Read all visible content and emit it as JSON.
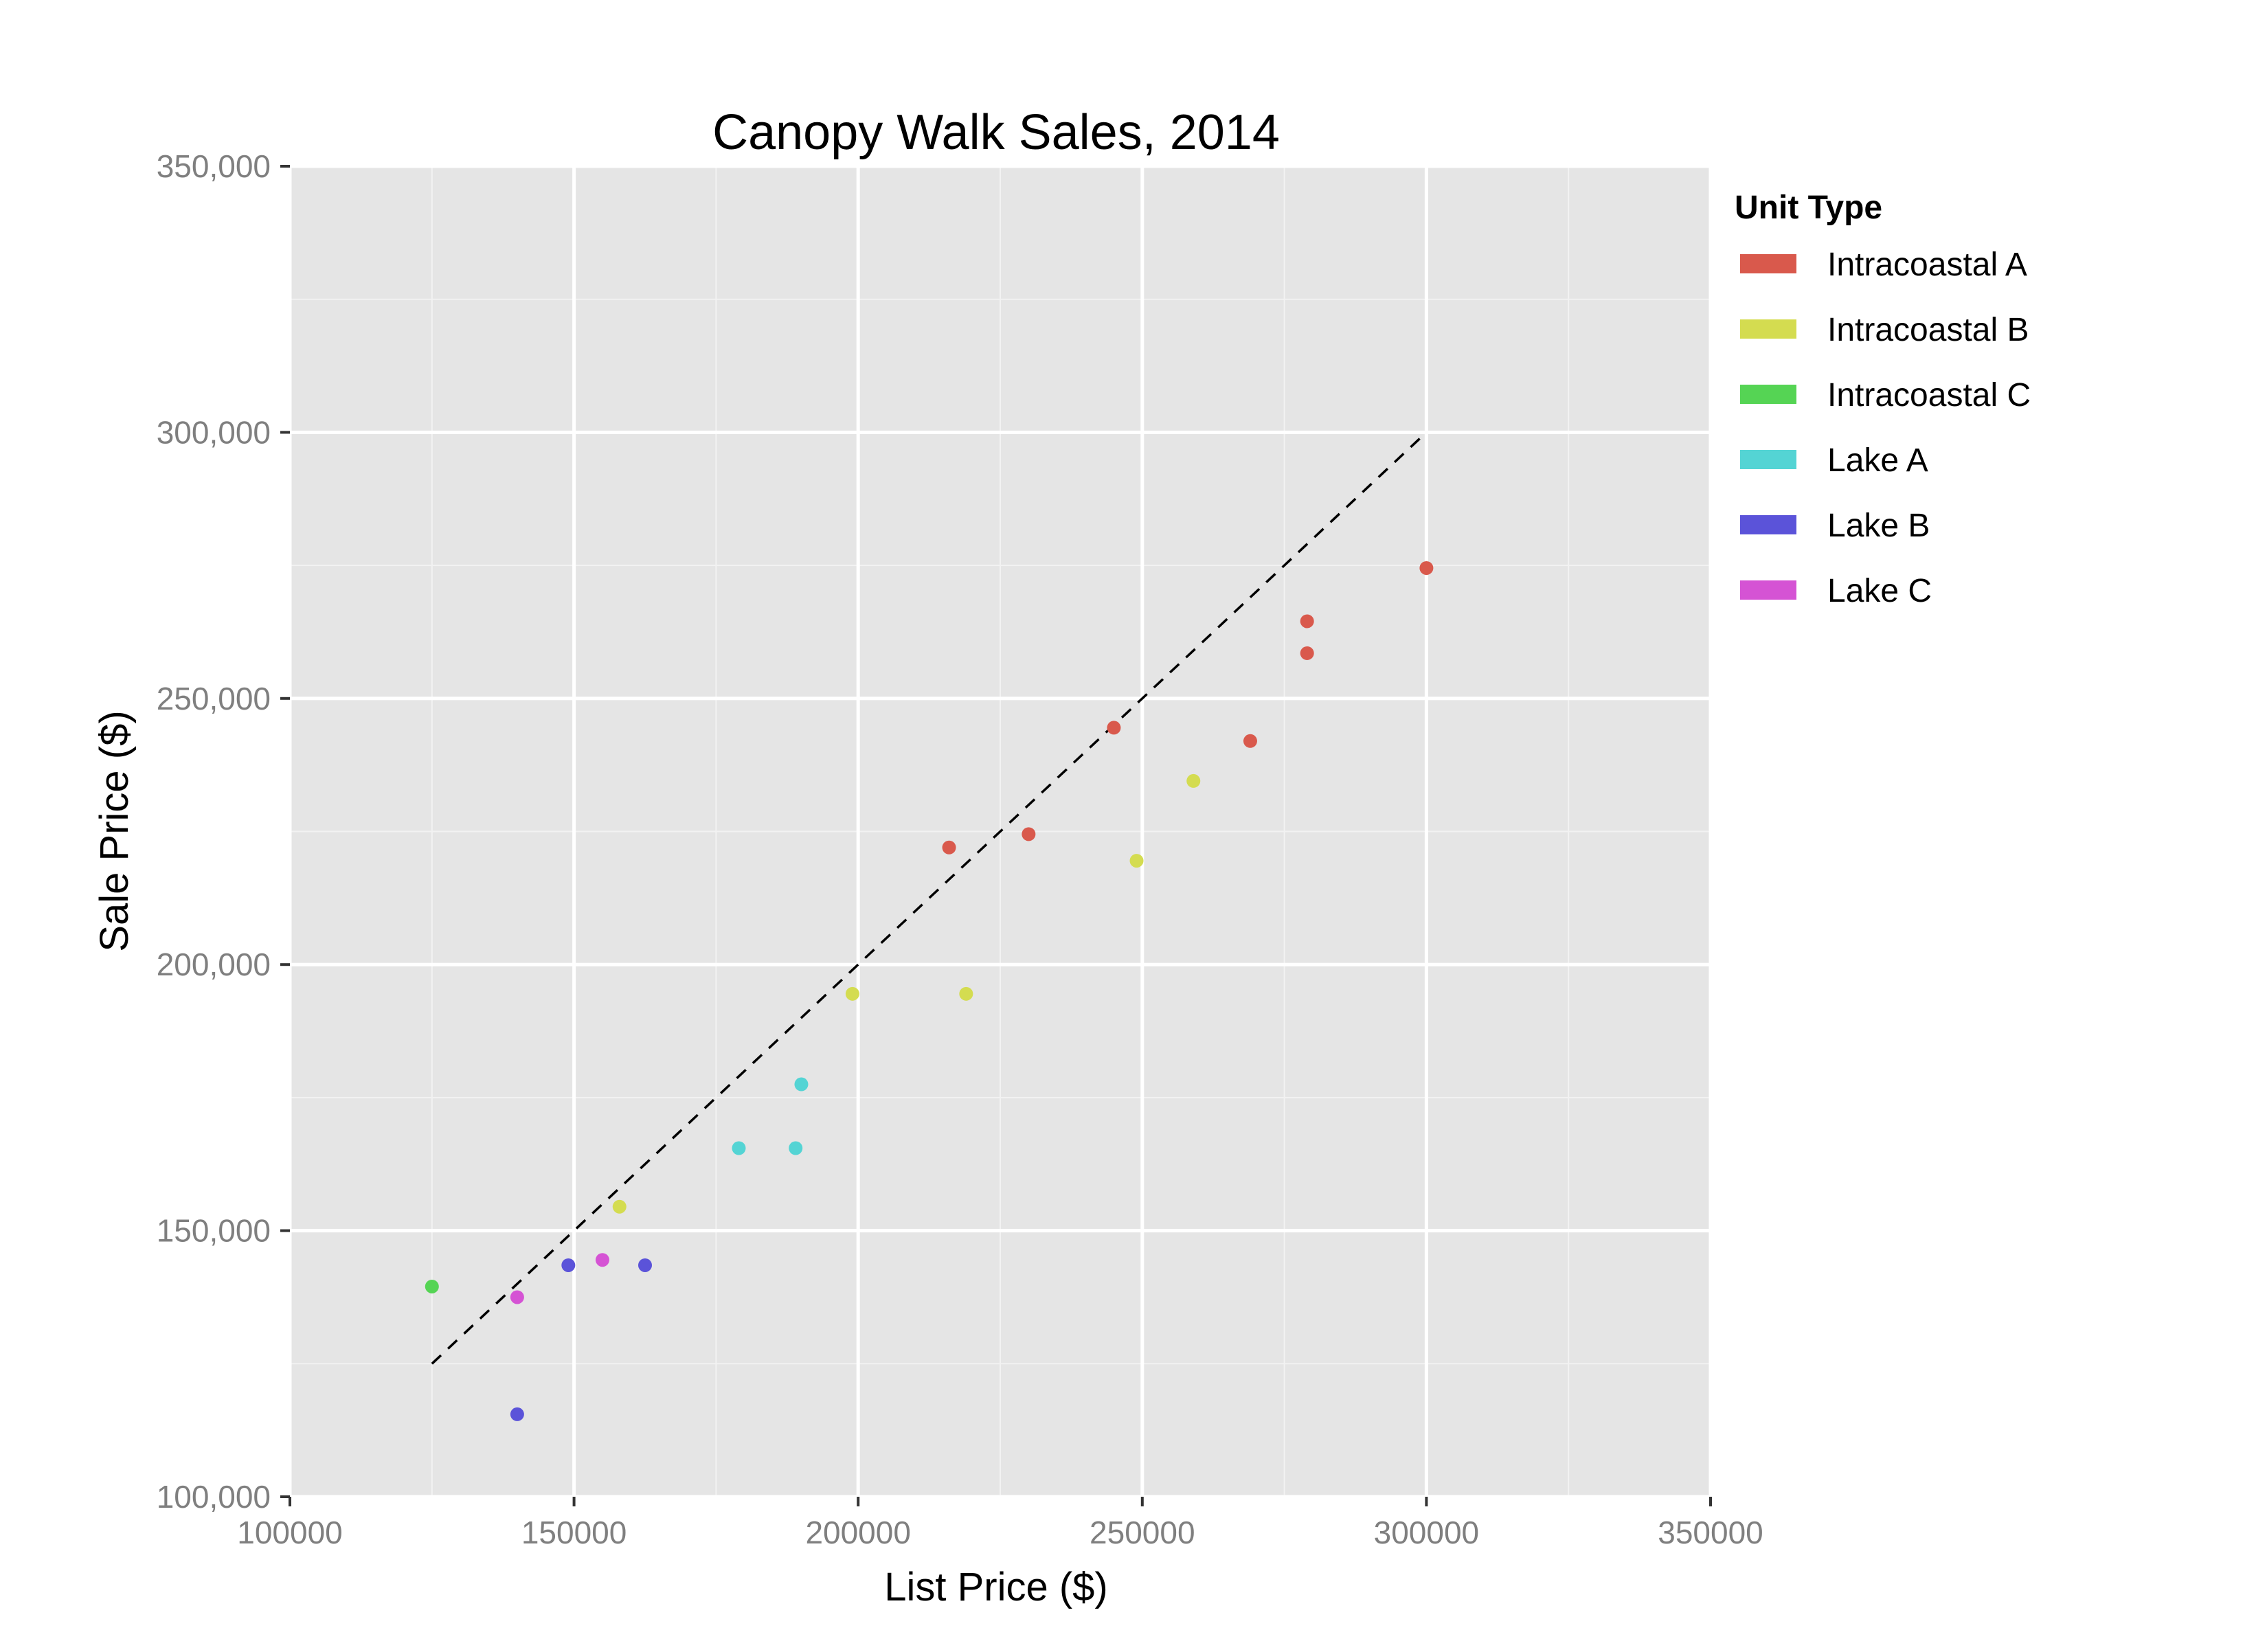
{
  "chart_data": {
    "type": "scatter",
    "title": "Canopy Walk Sales, 2014",
    "xlabel": "List Price ($)",
    "ylabel": "Sale Price ($)",
    "xlim": [
      100000,
      350000
    ],
    "ylim": [
      100000,
      350000
    ],
    "x_ticks": [
      100000,
      150000,
      200000,
      250000,
      300000,
      350000
    ],
    "x_tick_labels": [
      "100000",
      "150000",
      "200000",
      "250000",
      "300000",
      "350000"
    ],
    "y_ticks": [
      100000,
      150000,
      200000,
      250000,
      300000,
      350000
    ],
    "y_tick_labels": [
      "100,000",
      "150,000",
      "200,000",
      "250,000",
      "300,000",
      "350,000"
    ],
    "grid": true,
    "background": "#e5e5e5",
    "legend": {
      "title": "Unit Type",
      "placement": "right"
    },
    "reference_line": {
      "style": "dashed",
      "color": "#000000",
      "x": [
        125000,
        300000
      ],
      "y": [
        125000,
        300000
      ]
    },
    "series": [
      {
        "name": "Intracoastal A",
        "color": "#d9594c",
        "points": [
          {
            "x": 216000,
            "y": 222000
          },
          {
            "x": 230000,
            "y": 224500
          },
          {
            "x": 245000,
            "y": 244500
          },
          {
            "x": 269000,
            "y": 242000
          },
          {
            "x": 279000,
            "y": 264500
          },
          {
            "x": 279000,
            "y": 258500
          },
          {
            "x": 300000,
            "y": 274500
          }
        ]
      },
      {
        "name": "Intracoastal B",
        "color": "#d4dc50",
        "points": [
          {
            "x": 158000,
            "y": 154500
          },
          {
            "x": 199000,
            "y": 194500
          },
          {
            "x": 219000,
            "y": 194500
          },
          {
            "x": 249000,
            "y": 219500
          },
          {
            "x": 259000,
            "y": 234500
          }
        ]
      },
      {
        "name": "Intracoastal C",
        "color": "#55d454",
        "points": [
          {
            "x": 125000,
            "y": 139500
          }
        ]
      },
      {
        "name": "Lake A",
        "color": "#54d4d4",
        "points": [
          {
            "x": 179000,
            "y": 165500
          },
          {
            "x": 189000,
            "y": 165500
          },
          {
            "x": 190000,
            "y": 177500
          }
        ]
      },
      {
        "name": "Lake B",
        "color": "#5b53d9",
        "points": [
          {
            "x": 149000,
            "y": 143500
          },
          {
            "x": 162500,
            "y": 143500
          },
          {
            "x": 140000,
            "y": 115500
          }
        ]
      },
      {
        "name": "Lake C",
        "color": "#d553d4",
        "points": [
          {
            "x": 140000,
            "y": 137500
          },
          {
            "x": 155000,
            "y": 144500
          }
        ]
      }
    ]
  }
}
